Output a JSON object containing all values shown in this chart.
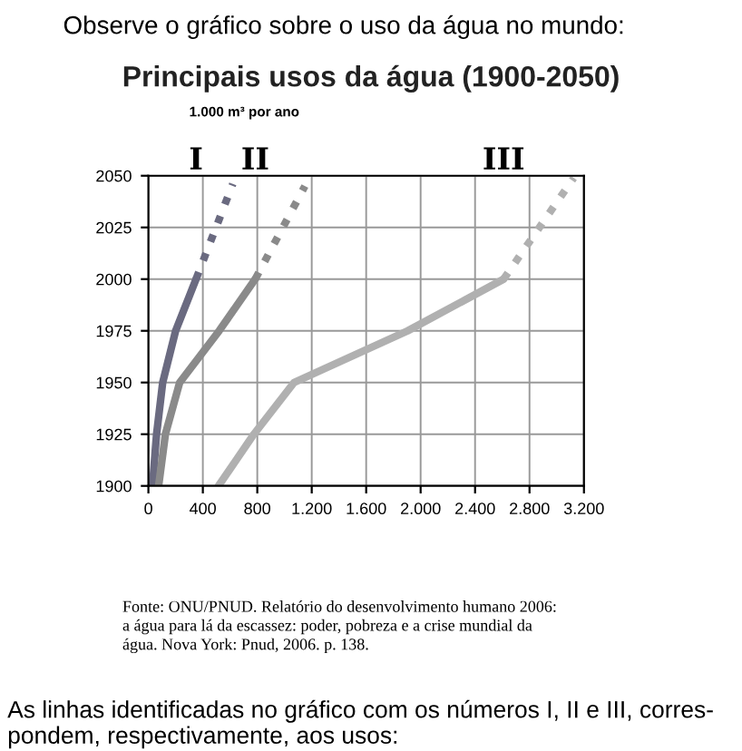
{
  "chart_data": {
    "type": "line",
    "title": "Principais usos da água (1900-2050)",
    "xlabel": "1.000 m³ por ano",
    "annotations": [
      "Observe o gráfico sobre o uso da água no mundo:",
      "Fonte: ONU/PNUD. Relatório do desenvolvimento humano 2006:\na água para lá da escassez: poder, pobreza e a crise mundial da\nágua. Nova York: Pnud, 2006. p. 138.",
      "As linhas identificadas no gráfico com os números I, II e III, corres-\npondem, respectivamente, aos usos:"
    ],
    "series": [
      {
        "name": "I",
        "color": "#6a6a80",
        "x": [
          30,
          60,
          105,
          200,
          350
        ],
        "values": [
          1900,
          1925,
          1950,
          1975,
          2000
        ]
      },
      {
        "color": "#6a6a80",
        "line_style": "dotted",
        "x": [
          350,
          620
        ],
        "values": [
          2000,
          2046
        ]
      },
      {
        "name": "II",
        "color": "#8a8a8a",
        "x": [
          75,
          125,
          230,
          520,
          785
        ],
        "values": [
          1900,
          1925,
          1950,
          1975,
          2000
        ]
      },
      {
        "color": "#8a8a8a",
        "line_style": "dotted",
        "x": [
          785,
          1150
        ],
        "values": [
          2000,
          2045
        ]
      },
      {
        "name": "III",
        "color": "#b0b0b0",
        "x": [
          515,
          775,
          1070,
          1905,
          2610
        ],
        "values": [
          1900,
          1925,
          1950,
          1975,
          2000
        ]
      },
      {
        "color": "#b0b0b0",
        "line_style": "dotted",
        "x": [
          2610,
          3125
        ],
        "values": [
          2000,
          2049
        ]
      }
    ],
    "xlim": [
      0,
      3200
    ],
    "xticks": [
      0,
      400,
      800,
      {
        "value": 1200,
        "label": "1.200"
      },
      {
        "value": 1600,
        "label": "1.600"
      },
      {
        "value": 2000,
        "label": "2.000"
      },
      {
        "value": 2400,
        "label": "2.400"
      },
      {
        "value": 2800,
        "label": "2.800"
      },
      {
        "value": 3200,
        "label": "3.200"
      }
    ],
    "ylim": [
      1900,
      2050
    ],
    "yticks": [
      1900,
      1925,
      1950,
      1975,
      2000,
      2025,
      2050
    ],
    "grid": true,
    "line_style": "solid"
  }
}
